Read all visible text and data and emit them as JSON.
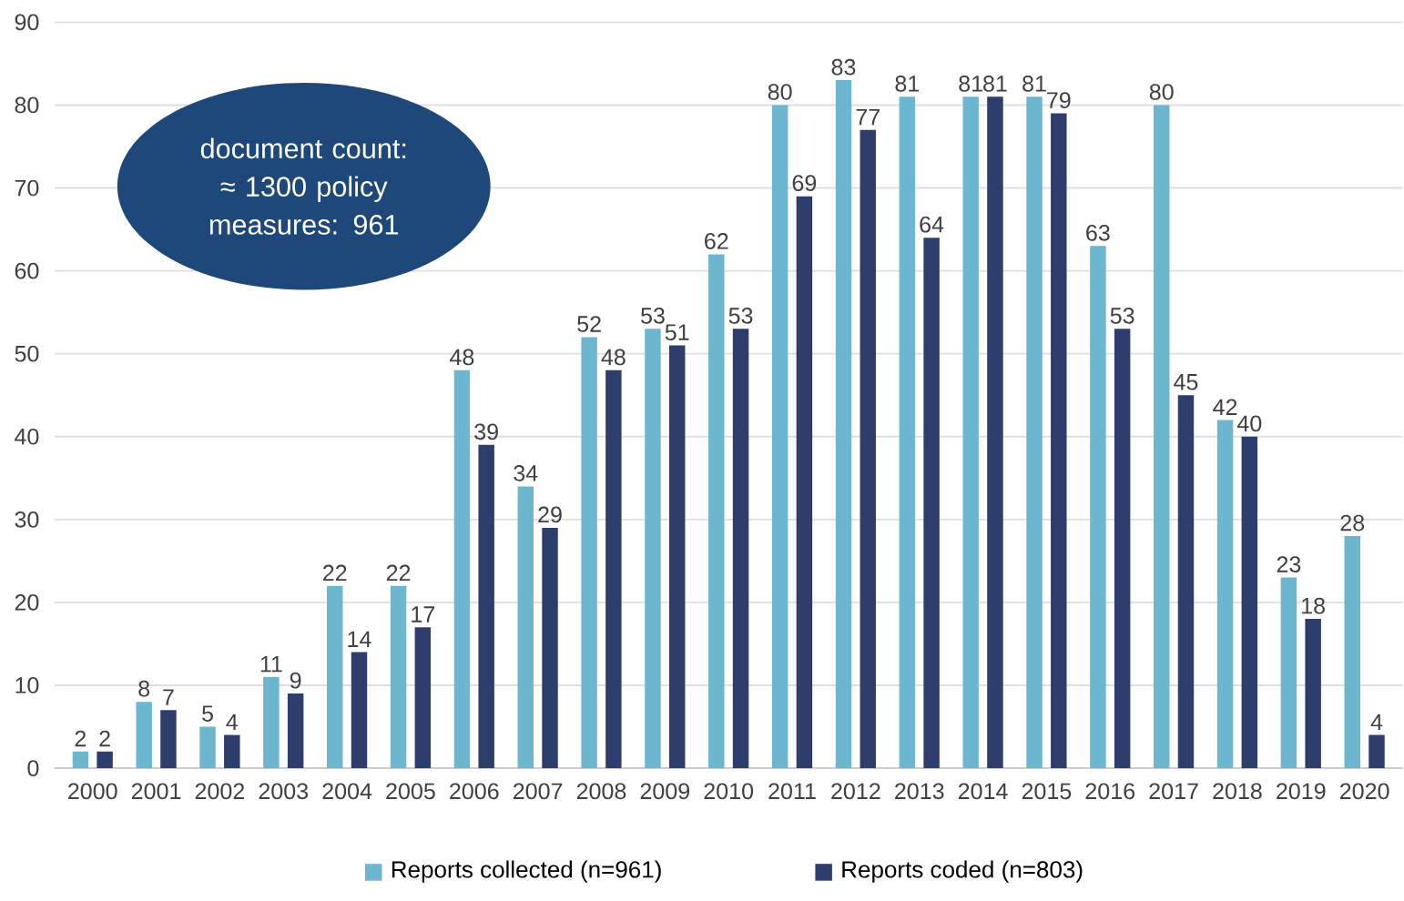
{
  "chart_data": {
    "type": "bar",
    "categories": [
      "2000",
      "2001",
      "2002",
      "2003",
      "2004",
      "2005",
      "2006",
      "2007",
      "2008",
      "2009",
      "2010",
      "2011",
      "2012",
      "2013",
      "2014",
      "2015",
      "2016",
      "2017",
      "2018",
      "2019",
      "2020"
    ],
    "series": [
      {
        "name": "Reports collected (n=961)",
        "color": "#6cb6d0",
        "values": [
          2,
          8,
          5,
          11,
          22,
          22,
          48,
          34,
          52,
          53,
          62,
          80,
          83,
          81,
          81,
          81,
          63,
          80,
          42,
          23,
          28
        ]
      },
      {
        "name": "Reports coded (n=803)",
        "color": "#2e3e6c",
        "values": [
          2,
          7,
          4,
          9,
          14,
          17,
          39,
          29,
          48,
          51,
          53,
          69,
          77,
          64,
          81,
          79,
          53,
          45,
          40,
          18,
          4
        ]
      }
    ],
    "ylim": [
      0,
      90
    ],
    "yticks": [
      0,
      10,
      20,
      30,
      40,
      50,
      60,
      70,
      80,
      90
    ],
    "grid": "y",
    "legend": "bottom",
    "data_labels": true,
    "annotations": [
      "document count: ≈ 1300 policy measures: 961"
    ]
  }
}
